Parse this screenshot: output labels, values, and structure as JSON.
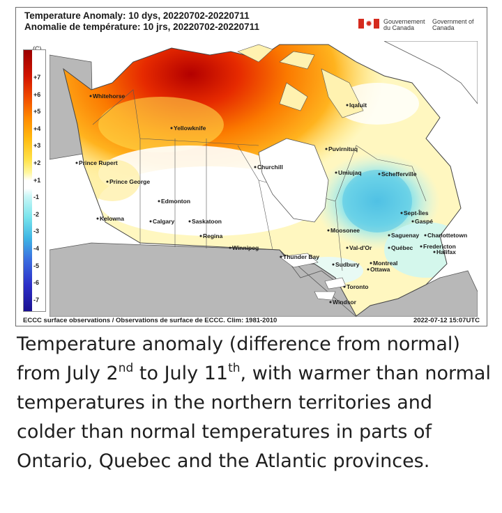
{
  "header": {
    "title_en": "Temperature Anomaly: 10 dys, 20220702-20220711",
    "title_fr": "Anomalie de température: 10 jrs, 20220702-20220711",
    "gov_fr": "Gouvernement du Canada",
    "gov_en": "Government of Canada"
  },
  "legend": {
    "unit": "(C)",
    "ticks": [
      "+7",
      "+6",
      "+5",
      "+4",
      "+3",
      "+2",
      "+1",
      "-1",
      "-2",
      "-3",
      "-4",
      "-5",
      "-6",
      "-7"
    ]
  },
  "map": {
    "cities": [
      {
        "name": "Whitehorse"
      },
      {
        "name": "Yellowknife"
      },
      {
        "name": "Iqaluit"
      },
      {
        "name": "Puvirnituq"
      },
      {
        "name": "Prince Rupert"
      },
      {
        "name": "Prince George"
      },
      {
        "name": "Churchill"
      },
      {
        "name": "Umiujaq"
      },
      {
        "name": "Schefferville"
      },
      {
        "name": "Edmonton"
      },
      {
        "name": "Kelowna"
      },
      {
        "name": "Calgary"
      },
      {
        "name": "Saskatoon"
      },
      {
        "name": "Regina"
      },
      {
        "name": "Winnipeg"
      },
      {
        "name": "Thunder Bay"
      },
      {
        "name": "Moosonee"
      },
      {
        "name": "Sept-Îles"
      },
      {
        "name": "Gaspé"
      },
      {
        "name": "Saguenay"
      },
      {
        "name": "Charlottetown"
      },
      {
        "name": "Val-d'Or"
      },
      {
        "name": "Québec"
      },
      {
        "name": "Fredericton"
      },
      {
        "name": "Halifax"
      },
      {
        "name": "Sudbury"
      },
      {
        "name": "Montreal"
      },
      {
        "name": "Ottawa"
      },
      {
        "name": "Toronto"
      },
      {
        "name": "Windsor"
      }
    ]
  },
  "footer": {
    "source": "ECCC surface observations / Observations de surface de ECCC. Clim: 1981-2010",
    "timestamp": "2022-07-12 15:07UTC"
  },
  "caption": {
    "p1": "Temperature anomaly (difference from normal) from July 2",
    "sup1": "nd",
    "p2": " to July 11",
    "sup2": "th",
    "p3": ", with warmer than normal temperatures in the northern territories and colder than normal temperatures in parts of Ontario, Quebec and the Atlantic provinces."
  }
}
